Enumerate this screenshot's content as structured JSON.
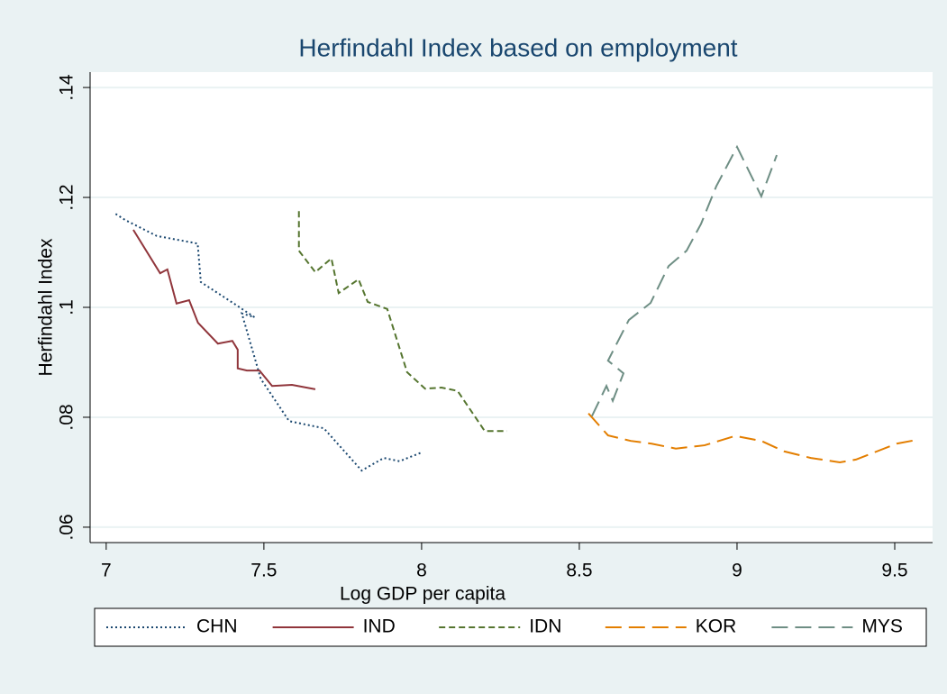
{
  "chart_data": {
    "type": "line",
    "title": "Herfindahl Index based on employment",
    "x_label": "Log GDP per capita",
    "y_label": "Herfindahl Index",
    "xlim": [
      6.949,
      9.62
    ],
    "ylim": [
      0.0572,
      0.1428
    ],
    "xticks": [
      7,
      7.5,
      8,
      8.5,
      9,
      9.5
    ],
    "yticks": [
      {
        "value": 0.06,
        "label": ".06"
      },
      {
        "value": 0.08,
        "label": ".08"
      },
      {
        "value": 0.1,
        "label": ".1"
      },
      {
        "value": 0.12,
        "label": ".12"
      },
      {
        "value": 0.14,
        "label": ".14"
      }
    ],
    "grid": true,
    "legend": "bottom",
    "series": [
      {
        "name": "CHN",
        "color": "#1a476f",
        "line_style": "dotted",
        "x": [
          7.03,
          7.06,
          7.16,
          7.29,
          7.3,
          7.41,
          7.47,
          7.43,
          7.49,
          7.58,
          7.69,
          7.81,
          7.88,
          7.93,
          8.0
        ],
        "values": [
          0.117,
          0.1159,
          0.113,
          0.1116,
          0.1046,
          0.1005,
          0.0982,
          0.0989,
          0.087,
          0.0793,
          0.078,
          0.0703,
          0.0726,
          0.072,
          0.0736
        ]
      },
      {
        "name": "IND",
        "color": "#90353b",
        "line_style": "solid",
        "x": [
          7.086,
          7.171,
          7.194,
          7.223,
          7.263,
          7.291,
          7.354,
          7.4,
          7.417,
          7.417,
          7.446,
          7.486,
          7.526,
          7.589,
          7.663
        ],
        "values": [
          0.1141,
          0.1062,
          0.1069,
          0.1007,
          0.1013,
          0.0972,
          0.0934,
          0.0939,
          0.0923,
          0.0889,
          0.0885,
          0.0885,
          0.0857,
          0.0859,
          0.0851
        ]
      },
      {
        "name": "IDN",
        "color": "#55752f",
        "line_style": "dashed",
        "x": [
          7.611,
          7.611,
          7.663,
          7.714,
          7.737,
          7.8,
          7.829,
          7.891,
          7.954,
          8.011,
          8.063,
          8.114,
          8.2,
          8.271
        ],
        "values": [
          0.1175,
          0.1103,
          0.1064,
          0.1089,
          0.1026,
          0.1051,
          0.101,
          0.0997,
          0.0882,
          0.0852,
          0.0854,
          0.0848,
          0.0775,
          0.0775
        ]
      },
      {
        "name": "KOR",
        "color": "#e37e00",
        "line_style": "long-dash",
        "x": [
          8.529,
          8.591,
          8.663,
          8.729,
          8.806,
          8.897,
          8.994,
          9.077,
          9.149,
          9.234,
          9.326,
          9.377,
          9.506,
          9.571
        ],
        "values": [
          0.0807,
          0.0767,
          0.0757,
          0.0752,
          0.0743,
          0.0749,
          0.0766,
          0.0757,
          0.0738,
          0.0726,
          0.0718,
          0.0723,
          0.0752,
          0.0759
        ]
      },
      {
        "name": "MYS",
        "color": "#6e8e84",
        "line_style": "long-dash",
        "x": [
          8.54,
          8.586,
          8.606,
          8.64,
          8.591,
          8.657,
          8.726,
          8.783,
          8.84,
          8.886,
          8.934,
          9.0,
          9.077,
          9.126
        ],
        "values": [
          0.0802,
          0.0857,
          0.083,
          0.088,
          0.0903,
          0.0977,
          0.1008,
          0.1075,
          0.1103,
          0.1152,
          0.122,
          0.1292,
          0.1202,
          0.1277
        ]
      }
    ]
  }
}
